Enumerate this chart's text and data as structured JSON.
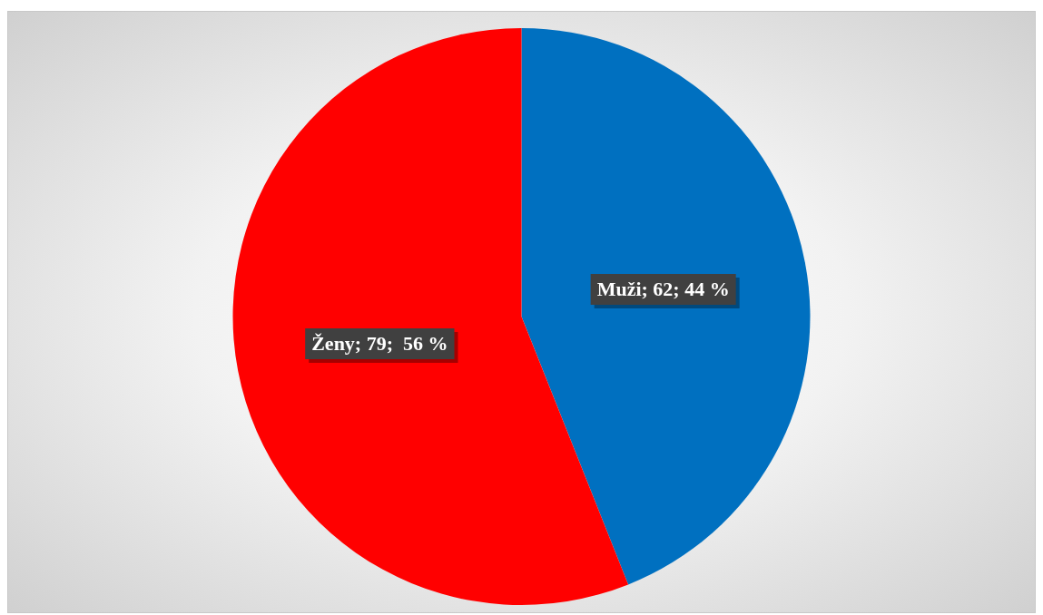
{
  "chart_data": {
    "type": "pie",
    "categories": [
      "Muži",
      "Ženy"
    ],
    "values": [
      62,
      79
    ],
    "colors": [
      "#0070c0",
      "#ff0000"
    ],
    "value_labels": [
      "62; 44 %",
      "79;  56 %"
    ]
  }
}
